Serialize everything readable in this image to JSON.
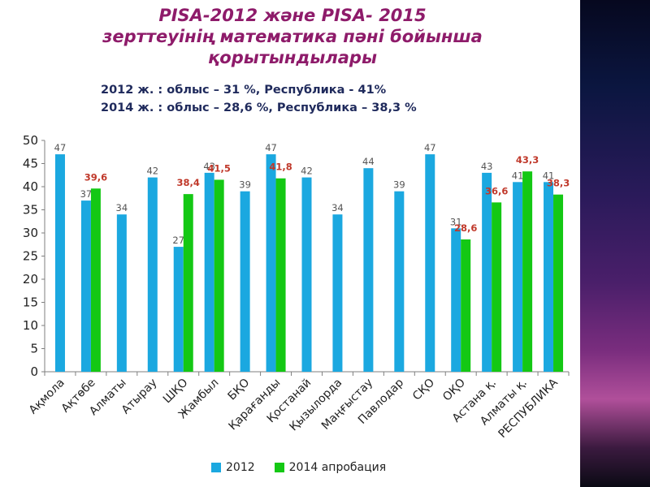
{
  "slide": {
    "title_lines": [
      "PISA-2012   және PISA- 2015",
      "зерттеуінің  математика пәні бойынша",
      "қорытындылары"
    ],
    "subtitle_lines": [
      "2012 ж. : облыс – 31 %, Республика - 41%",
      "2014 ж. : облыс – 28,6 %, Республика – 38,3  %"
    ]
  },
  "colors": {
    "series_2012": "#1ba8e0",
    "series_2014": "#14c814",
    "label_2014": "#c0392b",
    "label_2012": "#555555"
  },
  "chart_data": {
    "type": "bar",
    "ylim": [
      0,
      50
    ],
    "yticks": [
      "0",
      "5",
      "10",
      "15",
      "20",
      "25",
      "30",
      "35",
      "40",
      "45",
      "50"
    ],
    "grid": false,
    "legend_position": "bottom",
    "categories": [
      "Ақмола",
      "Ақтөбе",
      "Алматы",
      "Атырау",
      "ШҚО",
      "Жамбыл",
      "БҚО",
      "Қарағанды",
      "Қостанай",
      "Қызылорда",
      "Маңғыстау",
      "Павлодар",
      "СҚО",
      "ОҚО",
      "Астана қ.",
      "Алматы қ.",
      "РЕСПУБЛИКА"
    ],
    "series": [
      {
        "name": "2012",
        "values": [
          47,
          37,
          34,
          42,
          27,
          43,
          39,
          47,
          42,
          34,
          44,
          39,
          47,
          31,
          43,
          41,
          41
        ],
        "labels": [
          "47",
          "37",
          "34",
          "42",
          "27",
          "43",
          "39",
          "47",
          "42",
          "34",
          "44",
          "39",
          "47",
          "31",
          "43",
          "41",
          "41"
        ]
      },
      {
        "name": "2014 апробация",
        "values": [
          null,
          39.6,
          null,
          null,
          38.4,
          41.5,
          null,
          41.8,
          null,
          null,
          null,
          null,
          null,
          28.6,
          36.6,
          43.3,
          38.3
        ],
        "labels": [
          null,
          "39,6",
          null,
          null,
          "38,4",
          "41,5",
          null,
          "41,8",
          null,
          null,
          null,
          null,
          null,
          "28,6",
          "36,6",
          "43,3",
          "38,3"
        ]
      }
    ]
  }
}
